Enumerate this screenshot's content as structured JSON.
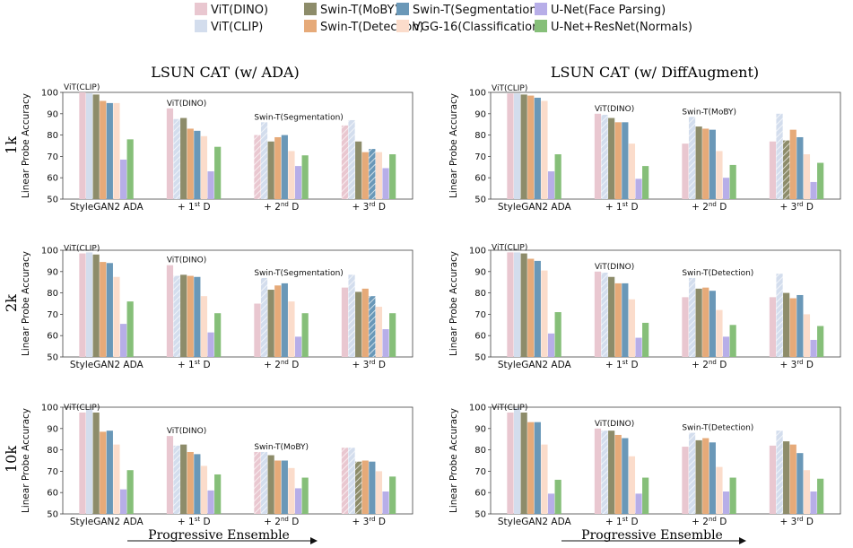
{
  "colors": {
    "ViT(DINO)": "#e9c7d0",
    "ViT(CLIP)": "#d3dded",
    "Swin-T(MoBY)": "#8d8c6a",
    "Swin-T(Detection)": "#e6aa79",
    "Swin-T(Segmentation)": "#6a98b8",
    "VGG-16(Classification)": "#fbdccb",
    "U-Net(Face Parsing)": "#b7aee8",
    "U-Net+ResNet(Normals)": "#86bf79"
  },
  "legend": [
    "ViT(DINO)",
    "Swin-T(MoBY)",
    "Swin-T(Segmentation)",
    "U-Net(Face Parsing)",
    "ViT(CLIP)",
    "Swin-T(Detection)",
    "VGG-16(Classification)",
    "U-Net+ResNet(Normals)"
  ],
  "column_titles": [
    "LSUN CAT (w/ ADA)",
    "LSUN CAT (w/ DiffAugment)"
  ],
  "row_labels": [
    "1k",
    "2k",
    "10k"
  ],
  "footer": {
    "label": "Progressive Ensemble"
  },
  "chart_data": [
    {
      "type": "bar",
      "column": 0,
      "row": 0,
      "ylabel": "Linear Probe Accuracy",
      "ylim": [
        50,
        100
      ],
      "yticks": [
        50,
        60,
        70,
        80,
        90,
        100
      ],
      "categories": [
        "StyleGAN2 ADA",
        "+ 1st D",
        "+ 2nd D",
        "+ 3rd D"
      ],
      "series": [
        {
          "name": "ViT(DINO)",
          "values": [
            100,
            92.5,
            80,
            84.5
          ]
        },
        {
          "name": "ViT(CLIP)",
          "values": [
            99.5,
            87.5,
            86,
            87
          ]
        },
        {
          "name": "Swin-T(MoBY)",
          "values": [
            99,
            88,
            77,
            77
          ]
        },
        {
          "name": "Swin-T(Detection)",
          "values": [
            96,
            83,
            79,
            72
          ]
        },
        {
          "name": "Swin-T(Segmentation)",
          "values": [
            95,
            82,
            80,
            73.5
          ]
        },
        {
          "name": "VGG-16(Classification)",
          "values": [
            95,
            79.5,
            72.5,
            72
          ]
        },
        {
          "name": "U-Net(Face Parsing)",
          "values": [
            68.5,
            63,
            65.5,
            64.5
          ]
        },
        {
          "name": "U-Net+ResNet(Normals)",
          "values": [
            78,
            74.5,
            70.5,
            71
          ]
        }
      ],
      "hatched": [
        [],
        [
          "ViT(CLIP)"
        ],
        [
          "ViT(DINO)",
          "ViT(CLIP)"
        ],
        [
          "ViT(DINO)",
          "ViT(CLIP)",
          "Swin-T(Segmentation)"
        ]
      ],
      "annotations": [
        {
          "text": "ViT(CLIP)",
          "group": 0,
          "series": "ViT(DINO)"
        },
        {
          "text": "ViT(DINO)",
          "group": 1,
          "series": "ViT(DINO)"
        },
        {
          "text": "Swin-T(Segmentation)",
          "group": 2,
          "series": "ViT(CLIP)"
        }
      ]
    },
    {
      "type": "bar",
      "column": 1,
      "row": 0,
      "ylabel": "Linear Probe Accuracy",
      "ylim": [
        50,
        100
      ],
      "yticks": [
        50,
        60,
        70,
        80,
        90,
        100
      ],
      "categories": [
        "StyleGAN2 ADA",
        "+ 1st D",
        "+ 2nd D",
        "+ 3rd D"
      ],
      "series": [
        {
          "name": "ViT(DINO)",
          "values": [
            99.5,
            90,
            76,
            77
          ]
        },
        {
          "name": "ViT(CLIP)",
          "values": [
            99.5,
            89.5,
            88.5,
            90
          ]
        },
        {
          "name": "Swin-T(MoBY)",
          "values": [
            99,
            88,
            84,
            77.5
          ]
        },
        {
          "name": "Swin-T(Detection)",
          "values": [
            98.5,
            86,
            83,
            82.5
          ]
        },
        {
          "name": "Swin-T(Segmentation)",
          "values": [
            97.5,
            86,
            82.5,
            79
          ]
        },
        {
          "name": "VGG-16(Classification)",
          "values": [
            96,
            76,
            72.5,
            71
          ]
        },
        {
          "name": "U-Net(Face Parsing)",
          "values": [
            63,
            59.5,
            60,
            58
          ]
        },
        {
          "name": "U-Net+ResNet(Normals)",
          "values": [
            71,
            65.5,
            66,
            67
          ]
        }
      ],
      "hatched": [
        [],
        [
          "ViT(CLIP)"
        ],
        [
          "ViT(CLIP)"
        ],
        [
          "ViT(CLIP)",
          "Swin-T(MoBY)"
        ]
      ],
      "annotations": [
        {
          "text": "ViT(CLIP)",
          "group": 0,
          "series": "ViT(DINO)"
        },
        {
          "text": "ViT(DINO)",
          "group": 1,
          "series": "ViT(DINO)"
        },
        {
          "text": "Swin-T(MoBY)",
          "group": 2,
          "series": "ViT(CLIP)"
        }
      ]
    },
    {
      "type": "bar",
      "column": 0,
      "row": 1,
      "ylabel": "Linear Probe Accuracy",
      "ylim": [
        50,
        100
      ],
      "yticks": [
        50,
        60,
        70,
        80,
        90,
        100
      ],
      "categories": [
        "StyleGAN2 ADA",
        "+ 1st D",
        "+ 2nd D",
        "+ 3rd D"
      ],
      "series": [
        {
          "name": "ViT(DINO)",
          "values": [
            98.5,
            93,
            75,
            82.5
          ]
        },
        {
          "name": "ViT(CLIP)",
          "values": [
            99,
            88,
            87,
            88.5
          ]
        },
        {
          "name": "Swin-T(MoBY)",
          "values": [
            98,
            88.5,
            81.5,
            80.5
          ]
        },
        {
          "name": "Swin-T(Detection)",
          "values": [
            94.5,
            88,
            83.5,
            82
          ]
        },
        {
          "name": "Swin-T(Segmentation)",
          "values": [
            94,
            87.5,
            84.5,
            78.5
          ]
        },
        {
          "name": "VGG-16(Classification)",
          "values": [
            87.5,
            78.5,
            76,
            73.5
          ]
        },
        {
          "name": "U-Net(Face Parsing)",
          "values": [
            65.5,
            61.5,
            59.5,
            63
          ]
        },
        {
          "name": "U-Net+ResNet(Normals)",
          "values": [
            76,
            70.5,
            70.5,
            70.5
          ]
        }
      ],
      "hatched": [
        [],
        [
          "ViT(CLIP)"
        ],
        [
          "ViT(CLIP)"
        ],
        [
          "ViT(CLIP)",
          "Swin-T(Segmentation)"
        ]
      ],
      "annotations": [
        {
          "text": "ViT(CLIP)",
          "group": 0,
          "series": "ViT(DINO)"
        },
        {
          "text": "ViT(DINO)",
          "group": 1,
          "series": "ViT(DINO)"
        },
        {
          "text": "Swin-T(Segmentation)",
          "group": 2,
          "series": "ViT(CLIP)"
        }
      ]
    },
    {
      "type": "bar",
      "column": 1,
      "row": 1,
      "ylabel": "Linear Probe Accuracy",
      "ylim": [
        50,
        100
      ],
      "yticks": [
        50,
        60,
        70,
        80,
        90,
        100
      ],
      "categories": [
        "StyleGAN2 ADA",
        "+ 1st D",
        "+ 2nd D",
        "+ 3rd D"
      ],
      "series": [
        {
          "name": "ViT(DINO)",
          "values": [
            99,
            90,
            78,
            78
          ]
        },
        {
          "name": "ViT(CLIP)",
          "values": [
            99,
            89.5,
            87,
            89
          ]
        },
        {
          "name": "Swin-T(MoBY)",
          "values": [
            98.5,
            87.5,
            82,
            80
          ]
        },
        {
          "name": "Swin-T(Detection)",
          "values": [
            96,
            84.5,
            82.5,
            77.5
          ]
        },
        {
          "name": "Swin-T(Segmentation)",
          "values": [
            95,
            84.5,
            81,
            79
          ]
        },
        {
          "name": "VGG-16(Classification)",
          "values": [
            90.5,
            77,
            72,
            70
          ]
        },
        {
          "name": "U-Net(Face Parsing)",
          "values": [
            61,
            59,
            59.5,
            58
          ]
        },
        {
          "name": "U-Net+ResNet(Normals)",
          "values": [
            71,
            66,
            65,
            64.5
          ]
        }
      ],
      "hatched": [
        [],
        [
          "ViT(CLIP)"
        ],
        [
          "ViT(CLIP)"
        ],
        [
          "ViT(CLIP)"
        ]
      ],
      "annotations": [
        {
          "text": "ViT(CLIP)",
          "group": 0,
          "series": "ViT(DINO)"
        },
        {
          "text": "ViT(DINO)",
          "group": 1,
          "series": "ViT(DINO)"
        },
        {
          "text": "Swin-T(Detection)",
          "group": 2,
          "series": "ViT(CLIP)"
        }
      ]
    },
    {
      "type": "bar",
      "column": 0,
      "row": 2,
      "ylabel": "Linear Probe Accuracy",
      "ylim": [
        50,
        100
      ],
      "yticks": [
        50,
        60,
        70,
        80,
        90,
        100
      ],
      "categories": [
        "StyleGAN2 ADA",
        "+ 1st D",
        "+ 2nd D",
        "+ 3rd D"
      ],
      "series": [
        {
          "name": "ViT(DINO)",
          "values": [
            97.5,
            86.5,
            79,
            81
          ]
        },
        {
          "name": "ViT(CLIP)",
          "values": [
            99,
            82,
            79,
            81
          ]
        },
        {
          "name": "Swin-T(MoBY)",
          "values": [
            97.5,
            82.5,
            77.5,
            74.5
          ]
        },
        {
          "name": "Swin-T(Detection)",
          "values": [
            88.5,
            79,
            75,
            75
          ]
        },
        {
          "name": "Swin-T(Segmentation)",
          "values": [
            89,
            78,
            75,
            74.5
          ]
        },
        {
          "name": "VGG-16(Classification)",
          "values": [
            82.5,
            72.5,
            71.5,
            70
          ]
        },
        {
          "name": "U-Net(Face Parsing)",
          "values": [
            61.5,
            61,
            62,
            60.5
          ]
        },
        {
          "name": "U-Net+ResNet(Normals)",
          "values": [
            70.5,
            68.5,
            67,
            67.5
          ]
        }
      ],
      "hatched": [
        [],
        [
          "ViT(CLIP)"
        ],
        [
          "ViT(DINO)",
          "ViT(CLIP)"
        ],
        [
          "ViT(DINO)",
          "ViT(CLIP)",
          "Swin-T(MoBY)"
        ]
      ],
      "annotations": [
        {
          "text": "ViT(CLIP)",
          "group": 0,
          "series": "ViT(DINO)"
        },
        {
          "text": "ViT(DINO)",
          "group": 1,
          "series": "ViT(DINO)"
        },
        {
          "text": "Swin-T(MoBY)",
          "group": 2,
          "series": "ViT(CLIP)"
        }
      ]
    },
    {
      "type": "bar",
      "column": 1,
      "row": 2,
      "ylabel": "Linear Probe Accuracy",
      "ylim": [
        50,
        100
      ],
      "yticks": [
        50,
        60,
        70,
        80,
        90,
        100
      ],
      "categories": [
        "StyleGAN2 ADA",
        "+ 1st D",
        "+ 2nd D",
        "+ 3rd D"
      ],
      "series": [
        {
          "name": "ViT(DINO)",
          "values": [
            97.5,
            90,
            81.5,
            82
          ]
        },
        {
          "name": "ViT(CLIP)",
          "values": [
            99.5,
            89,
            88,
            89
          ]
        },
        {
          "name": "Swin-T(MoBY)",
          "values": [
            97.5,
            89,
            84.5,
            84
          ]
        },
        {
          "name": "Swin-T(Detection)",
          "values": [
            93,
            87,
            85.5,
            82.5
          ]
        },
        {
          "name": "Swin-T(Segmentation)",
          "values": [
            93,
            85.5,
            83.5,
            78.5
          ]
        },
        {
          "name": "VGG-16(Classification)",
          "values": [
            82.5,
            77,
            72,
            70.5
          ]
        },
        {
          "name": "U-Net(Face Parsing)",
          "values": [
            59.5,
            59.5,
            60.5,
            60.5
          ]
        },
        {
          "name": "U-Net+ResNet(Normals)",
          "values": [
            66,
            67,
            67,
            66.5
          ]
        }
      ],
      "hatched": [
        [],
        [
          "ViT(CLIP)"
        ],
        [
          "ViT(CLIP)"
        ],
        [
          "ViT(CLIP)"
        ]
      ],
      "annotations": [
        {
          "text": "ViT(CLIP)",
          "group": 0,
          "series": "ViT(DINO)"
        },
        {
          "text": "ViT(DINO)",
          "group": 1,
          "series": "ViT(DINO)"
        },
        {
          "text": "Swin-T(Detection)",
          "group": 2,
          "series": "ViT(CLIP)"
        }
      ]
    }
  ]
}
